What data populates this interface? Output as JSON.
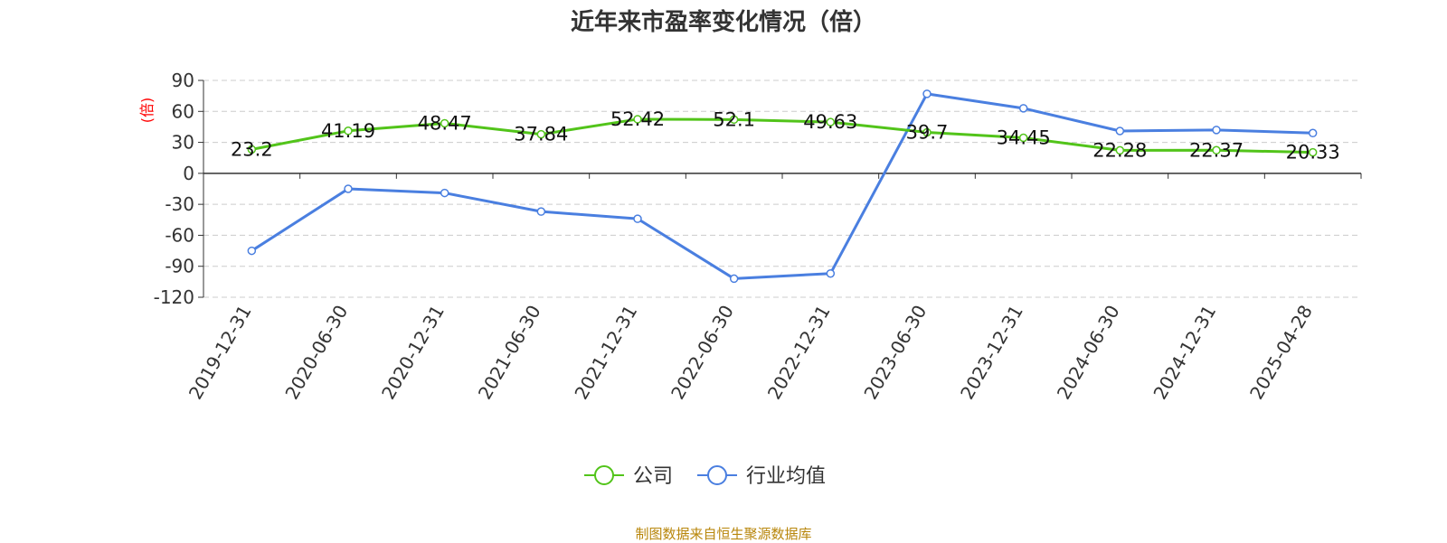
{
  "colors": {
    "company": "#52c41a",
    "industry": "#4a7fe0",
    "ylabel": "#ff0000",
    "source": "#b8860b",
    "grid": "#cccccc"
  },
  "source_text": "制图数据来自恒生聚源数据库",
  "chart_data": {
    "type": "line",
    "title": "近年来市盈率变化情况（倍）",
    "ylabel": "(倍)",
    "xlabel": "",
    "ylim": [
      -120,
      90
    ],
    "yticks": [
      90,
      60,
      30,
      0,
      -30,
      -60,
      -90,
      -120
    ],
    "grid": true,
    "legend_position": "bottom-center",
    "categories": [
      "2019-12-31",
      "2020-06-30",
      "2020-12-31",
      "2021-06-30",
      "2021-12-31",
      "2022-06-30",
      "2022-12-31",
      "2023-06-30",
      "2023-12-31",
      "2024-06-30",
      "2024-12-31",
      "2025-04-28"
    ],
    "series": [
      {
        "name": "公司",
        "color": "#52c41a",
        "values": [
          23.2,
          41.19,
          48.47,
          37.84,
          52.42,
          52.1,
          49.63,
          39.7,
          34.45,
          22.28,
          22.37,
          20.33
        ],
        "labels": [
          "23.2",
          "41.19",
          "48.47",
          "37.84",
          "52.42",
          "52.1",
          "49.63",
          "39.7",
          "34.45",
          "22.28",
          "22.37",
          "20.33"
        ]
      },
      {
        "name": "行业均值",
        "color": "#4a7fe0",
        "values": [
          -75,
          -15,
          -19,
          -37,
          -44,
          -102,
          -97,
          77,
          63,
          41,
          42,
          39
        ]
      }
    ]
  }
}
